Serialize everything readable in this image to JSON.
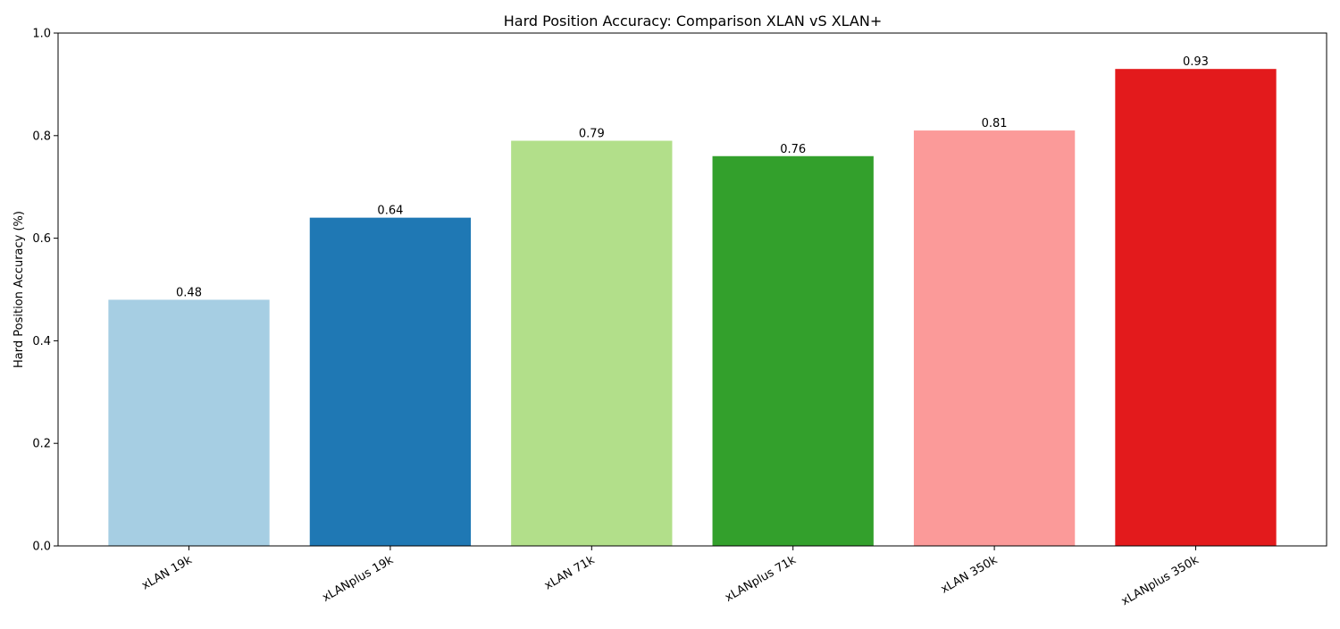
{
  "chart_data": {
    "type": "bar",
    "title": "Hard Position Accuracy: Comparison XLAN vS XLAN+",
    "xlabel": "",
    "ylabel": "Hard Position Accuracy (%)",
    "ylim": [
      0,
      1.0
    ],
    "yticks": [
      "0.0",
      "0.2",
      "0.4",
      "0.6",
      "0.8",
      "1.0"
    ],
    "grid": false,
    "categories": [
      "xLAN 19k",
      "xLANplus 19k",
      "xLAN 71k",
      "xLANplus 71k",
      "xLAN 350k",
      "xLANplus 350k"
    ],
    "values": [
      0.48,
      0.64,
      0.79,
      0.76,
      0.81,
      0.93
    ],
    "value_labels": [
      "0.48",
      "0.64",
      "0.79",
      "0.76",
      "0.81",
      "0.93"
    ],
    "colors": [
      "#a6cee3",
      "#1f78b4",
      "#b2df8a",
      "#33a02c",
      "#fb9a99",
      "#e31a1c"
    ]
  }
}
